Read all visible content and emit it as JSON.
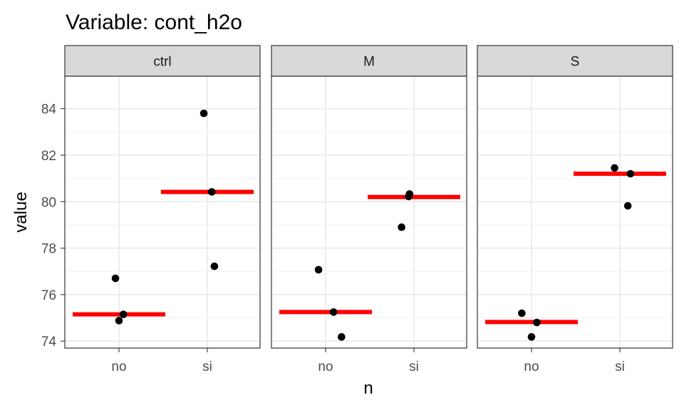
{
  "chart_data": {
    "type": "scatter",
    "title": "Variable: cont_h2o",
    "xlabel": "n",
    "ylabel": "value",
    "categories": [
      "no",
      "si"
    ],
    "ylim": [
      73.7,
      85.4
    ],
    "yticks": [
      74,
      76,
      78,
      80,
      82,
      84
    ],
    "grid": true,
    "summary_color": "#ff0000",
    "point_color": "#000000",
    "strip_fill": "#d9d9d9",
    "panels": [
      {
        "label": "ctrl",
        "points": [
          {
            "x": "no",
            "jitter": -0.04,
            "y": 76.7
          },
          {
            "x": "no",
            "jitter": 0.05,
            "y": 75.15
          },
          {
            "x": "no",
            "jitter": 0.0,
            "y": 74.88
          },
          {
            "x": "si",
            "jitter": -0.04,
            "y": 83.8
          },
          {
            "x": "si",
            "jitter": 0.05,
            "y": 80.42
          },
          {
            "x": "si",
            "jitter": 0.08,
            "y": 77.22
          }
        ],
        "means": [
          {
            "x": "no",
            "y": 75.15
          },
          {
            "x": "si",
            "y": 80.42
          }
        ]
      },
      {
        "label": "M",
        "points": [
          {
            "x": "no",
            "jitter": -0.08,
            "y": 77.07
          },
          {
            "x": "no",
            "jitter": 0.09,
            "y": 75.25
          },
          {
            "x": "no",
            "jitter": 0.18,
            "y": 74.18
          },
          {
            "x": "si",
            "jitter": -0.14,
            "y": 78.9
          },
          {
            "x": "si",
            "jitter": -0.06,
            "y": 80.22
          },
          {
            "x": "si",
            "jitter": -0.05,
            "y": 80.33
          }
        ],
        "means": [
          {
            "x": "no",
            "y": 75.25
          },
          {
            "x": "si",
            "y": 80.2
          }
        ]
      },
      {
        "label": "S",
        "points": [
          {
            "x": "no",
            "jitter": -0.11,
            "y": 75.2
          },
          {
            "x": "no",
            "jitter": 0.06,
            "y": 74.8
          },
          {
            "x": "no",
            "jitter": 0.0,
            "y": 74.18
          },
          {
            "x": "si",
            "jitter": -0.06,
            "y": 81.45
          },
          {
            "x": "si",
            "jitter": 0.12,
            "y": 81.2
          },
          {
            "x": "si",
            "jitter": 0.09,
            "y": 79.82
          }
        ],
        "means": [
          {
            "x": "no",
            "y": 74.82
          },
          {
            "x": "si",
            "y": 81.2
          }
        ]
      }
    ]
  }
}
